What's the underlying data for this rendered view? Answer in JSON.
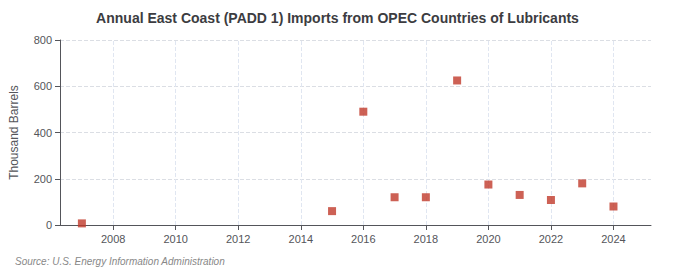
{
  "chart_data": {
    "type": "scatter",
    "title": "Annual East Coast (PADD 1) Imports from OPEC Countries of Lubricants",
    "ylabel": "Thousand Barrels",
    "source": "Source: U.S. Energy Information Administration",
    "x": [
      2007,
      2015,
      2016,
      2017,
      2018,
      2019,
      2020,
      2021,
      2022,
      2023,
      2024
    ],
    "values": [
      7,
      60,
      490,
      120,
      120,
      625,
      175,
      130,
      108,
      180,
      80
    ],
    "color": "#c0392b",
    "marker": "square",
    "xlim": [
      2006.3,
      2025.2
    ],
    "xticks": [
      2008,
      2010,
      2012,
      2014,
      2016,
      2018,
      2020,
      2022,
      2024
    ],
    "ylim": [
      0,
      800
    ],
    "yticks": [
      0,
      200,
      400,
      600,
      800
    ],
    "grid": true
  }
}
